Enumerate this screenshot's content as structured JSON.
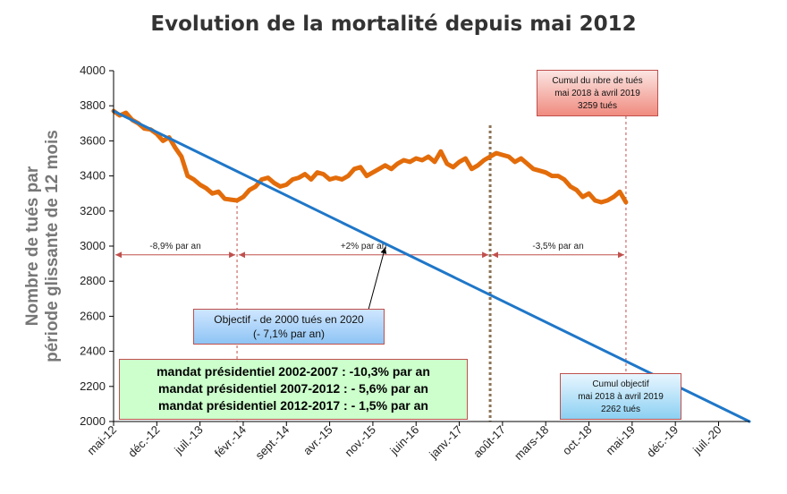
{
  "chart_data": {
    "type": "line",
    "title": "Evolution de la mortalité depuis mai 2012",
    "ylabel_lines": [
      "Nombre de tués par",
      "période  glissante de 12 mois"
    ],
    "xlabel": "",
    "ylim": [
      2000,
      4000
    ],
    "yticks": [
      2000,
      2200,
      2400,
      2600,
      2800,
      3000,
      3200,
      3400,
      3600,
      3800,
      4000
    ],
    "x_start": "2012-05",
    "x_end": "2020-12",
    "xtick_labels": [
      "mai-12",
      "déc.-12",
      "juil.-13",
      "févr.-14",
      "sept.-14",
      "avr.-15",
      "nov.-15",
      "juin-16",
      "janv.-17",
      "août-17",
      "mars-18",
      "oct.-18",
      "mai-19",
      "déc.-19",
      "juil.-20"
    ],
    "xtick_dates": [
      "2012-05",
      "2012-12",
      "2013-07",
      "2014-02",
      "2014-09",
      "2015-04",
      "2015-11",
      "2016-06",
      "2017-01",
      "2017-08",
      "2018-03",
      "2018-10",
      "2019-05",
      "2019-12",
      "2020-07"
    ],
    "series": [
      {
        "name": "",
        "color": "#e36c0a",
        "x": [
          "2012-05",
          "2012-06",
          "2012-07",
          "2012-08",
          "2012-09",
          "2012-10",
          "2012-11",
          "2012-12",
          "2013-01",
          "2013-02",
          "2013-03",
          "2013-04",
          "2013-05",
          "2013-06",
          "2013-07",
          "2013-08",
          "2013-09",
          "2013-10",
          "2013-11",
          "2013-12",
          "2014-01",
          "2014-02",
          "2014-03",
          "2014-04",
          "2014-05",
          "2014-06",
          "2014-07",
          "2014-08",
          "2014-09",
          "2014-10",
          "2014-11",
          "2014-12",
          "2015-01",
          "2015-02",
          "2015-03",
          "2015-04",
          "2015-05",
          "2015-06",
          "2015-07",
          "2015-08",
          "2015-09",
          "2015-10",
          "2015-11",
          "2015-12",
          "2016-01",
          "2016-02",
          "2016-03",
          "2016-04",
          "2016-05",
          "2016-06",
          "2016-07",
          "2016-08",
          "2016-09",
          "2016-10",
          "2016-11",
          "2016-12",
          "2017-01",
          "2017-02",
          "2017-03",
          "2017-04",
          "2017-05",
          "2017-06",
          "2017-07",
          "2017-08",
          "2017-09",
          "2017-10",
          "2017-11",
          "2017-12",
          "2018-01",
          "2018-02",
          "2018-03",
          "2018-04",
          "2018-05",
          "2018-06",
          "2018-07",
          "2018-08",
          "2018-09",
          "2018-10",
          "2018-11",
          "2018-12",
          "2019-01",
          "2019-02",
          "2019-03",
          "2019-04"
        ],
        "y": [
          3770,
          3745,
          3760,
          3720,
          3700,
          3670,
          3665,
          3640,
          3600,
          3620,
          3560,
          3510,
          3400,
          3380,
          3350,
          3330,
          3300,
          3310,
          3270,
          3265,
          3260,
          3280,
          3320,
          3340,
          3380,
          3390,
          3360,
          3340,
          3350,
          3380,
          3390,
          3410,
          3380,
          3420,
          3410,
          3380,
          3390,
          3380,
          3400,
          3440,
          3450,
          3400,
          3420,
          3440,
          3460,
          3440,
          3470,
          3490,
          3480,
          3500,
          3490,
          3510,
          3480,
          3540,
          3470,
          3450,
          3480,
          3500,
          3440,
          3460,
          3490,
          3510,
          3530,
          3520,
          3510,
          3480,
          3500,
          3470,
          3440,
          3430,
          3420,
          3400,
          3400,
          3380,
          3340,
          3320,
          3280,
          3300,
          3260,
          3250,
          3260,
          3280,
          3310,
          3250
        ]
      },
      {
        "name": "",
        "color": "#1f77c8",
        "x": [
          "2012-05",
          "2020-12"
        ],
        "y": [
          3770,
          2000
        ]
      }
    ],
    "markers": [
      {
        "date": "2014-01",
        "style": "thin-dashed"
      },
      {
        "date": "2017-06",
        "style": "thick-dotted"
      },
      {
        "date": "2019-04",
        "style": "thin-dashed"
      }
    ],
    "period_arrows": [
      {
        "from": "2012-05",
        "to": "2014-01",
        "y": 2950,
        "label": "-8,9% par an"
      },
      {
        "from": "2014-01",
        "to": "2017-06",
        "y": 2950,
        "label": "+2% par an"
      },
      {
        "from": "2017-06",
        "to": "2019-04",
        "y": 2950,
        "label": "-3,5% par an"
      }
    ],
    "annotations": {
      "objective": {
        "lines": [
          "Objectif - de 2000 tués en 2020",
          "(- 7,1% par an)"
        ],
        "arrow_to": "2016-01"
      },
      "cumul": {
        "lines": [
          "Cumul du nbre de tués",
          "mai 2018 à avril 2019",
          "3259 tués"
        ]
      },
      "cumul_objectif": {
        "lines": [
          "Cumul objectif",
          "mai 2018 à avril 2019",
          "2262 tués"
        ]
      },
      "mandats": [
        "mandat présidentiel 2002-2007 : -10,3% par an",
        "mandat présidentiel 2007-2012 : - 5,6% par an",
        "mandat présidentiel 2012-2017 : - 1,5% par an"
      ]
    },
    "grid": false,
    "legend": "none"
  }
}
